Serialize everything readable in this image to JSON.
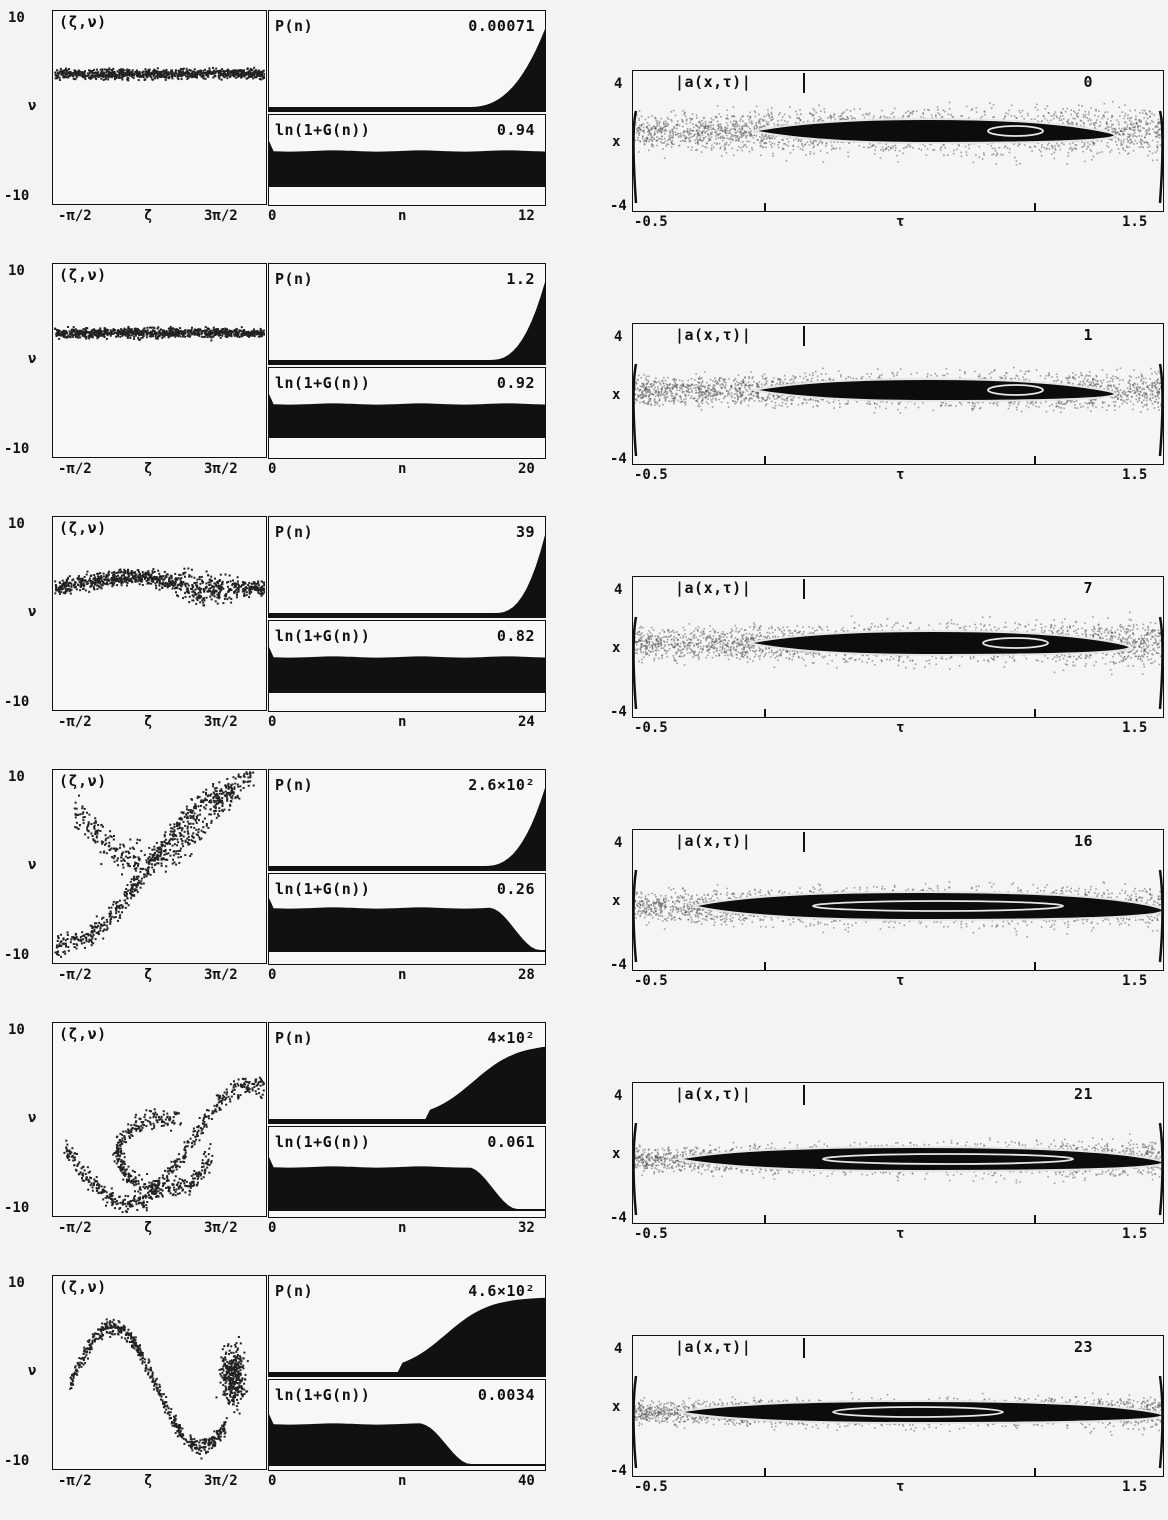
{
  "labels": {
    "phase_title": "(ζ,ν)",
    "phase_ylabel": "ν",
    "phase_ytop": "10",
    "phase_ybottom": "-10",
    "phase_xleft": "-π/2",
    "phase_xmid": "ζ",
    "phase_xright": "3π/2",
    "p_title": "P(n)",
    "g_title": "ln(1+G(n))",
    "n_xleft": "0",
    "n_xmid": "n",
    "a_title": "|a(x,τ)|",
    "a_ylabel": "x",
    "a_ytop": "4",
    "a_ybottom": "-4",
    "a_xleft": "-0.5",
    "a_xmid": "τ",
    "a_xright": "1.5"
  },
  "rows": [
    {
      "p_value": "0.00071",
      "g_value": "0.94",
      "n_max": "12",
      "a_value": "0"
    },
    {
      "p_value": "1.2",
      "g_value": "0.92",
      "n_max": "20",
      "a_value": "1"
    },
    {
      "p_value": "39",
      "g_value": "0.82",
      "n_max": "24",
      "a_value": "7"
    },
    {
      "p_value": "2.6×10²",
      "g_value": "0.26",
      "n_max": "28",
      "a_value": "16"
    },
    {
      "p_value": "4×10²",
      "g_value": "0.061",
      "n_max": "32",
      "a_value": "21"
    },
    {
      "p_value": "4.6×10²",
      "g_value": "0.0034",
      "n_max": "40",
      "a_value": "23"
    }
  ]
}
